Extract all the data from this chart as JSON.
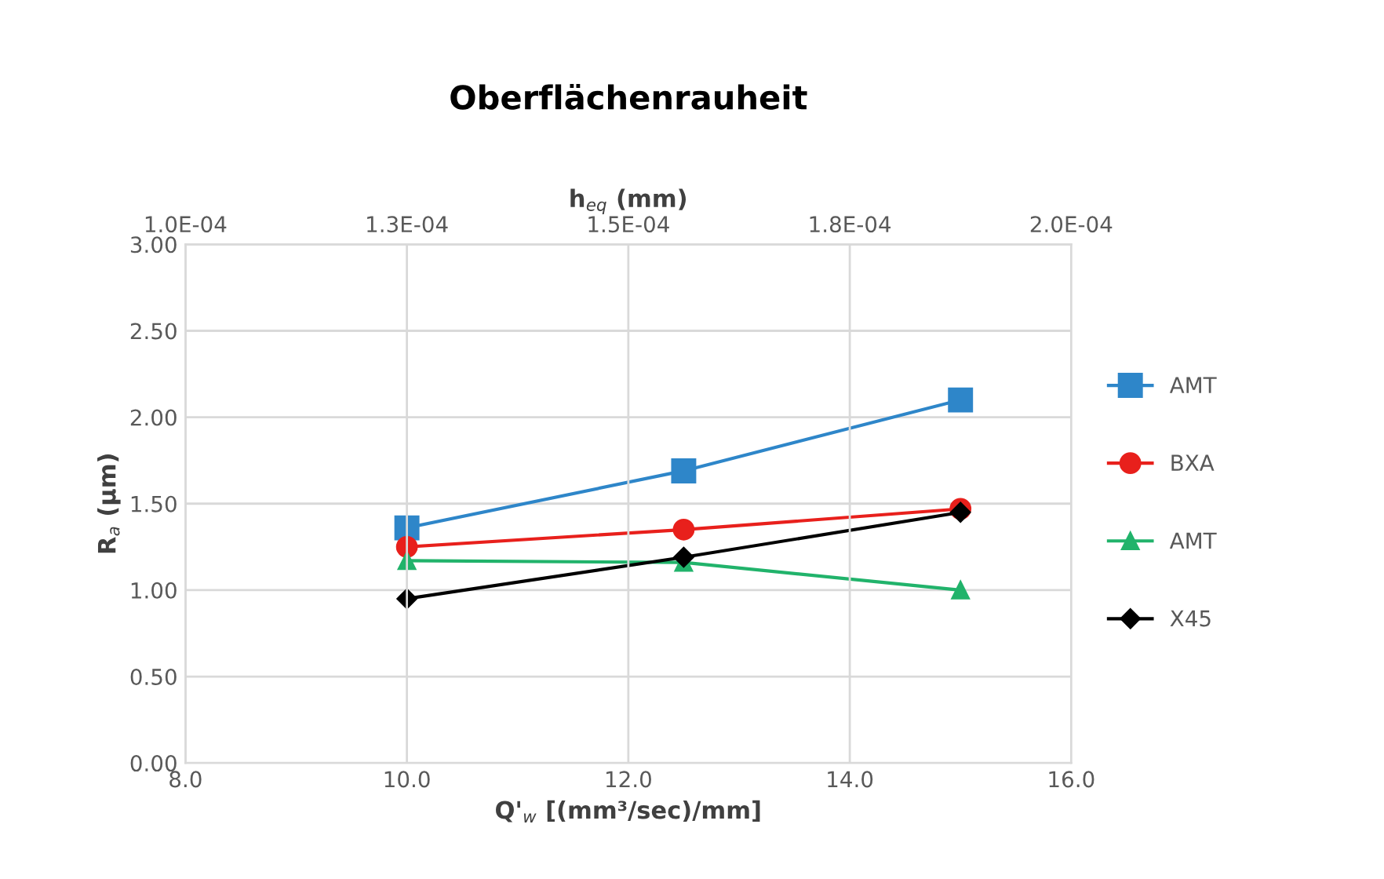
{
  "chart_data": {
    "type": "line",
    "title": "Oberflächenrauheit",
    "xlabel": "Q'$_{w}$ [(mm³/sec)/mm]",
    "ylabel": "R$_{a}$ (µm)",
    "x2label": "h$_{eq}$ (mm)",
    "x": [
      10.0,
      12.5,
      15.0
    ],
    "series": [
      {
        "name": "AMT",
        "color": "#2e86c9",
        "marker": "square",
        "values": [
          1.36,
          1.69,
          2.1
        ]
      },
      {
        "name": "BXA",
        "color": "#e8201c",
        "marker": "circle",
        "values": [
          1.25,
          1.35,
          1.47
        ]
      },
      {
        "name": "AMT",
        "color": "#21b36b",
        "marker": "triangle",
        "values": [
          1.17,
          1.16,
          1.0
        ]
      },
      {
        "name": "X45",
        "color": "#000000",
        "marker": "diamond",
        "values": [
          0.95,
          1.19,
          1.45
        ]
      }
    ],
    "xlim": [
      8.0,
      16.0
    ],
    "xticks": [
      {
        "value": 8,
        "label": "8.0"
      },
      {
        "value": 10,
        "label": "10.0"
      },
      {
        "value": 12,
        "label": "12.0"
      },
      {
        "value": 14,
        "label": "14.0"
      },
      {
        "value": 16,
        "label": "16.0"
      }
    ],
    "ylim": [
      0,
      3
    ],
    "yticks": [
      {
        "value": 0,
        "label": "0.00"
      },
      {
        "value": 0.5,
        "label": "0.50"
      },
      {
        "value": 1,
        "label": "1.00"
      },
      {
        "value": 1.5,
        "label": "1.50"
      },
      {
        "value": 2,
        "label": "2.00"
      },
      {
        "value": 2.5,
        "label": "2.50"
      },
      {
        "value": 3,
        "label": "3.00"
      }
    ],
    "x2lim": [
      0.0001,
      0.0002
    ],
    "x2ticks": [
      {
        "value": 0.0001,
        "label": "1.0E-04"
      },
      {
        "value": 0.000125,
        "label": "1.3E-04"
      },
      {
        "value": 0.00015,
        "label": "1.5E-04"
      },
      {
        "value": 0.000175,
        "label": "1.8E-04"
      },
      {
        "value": 0.0002,
        "label": "2.0E-04"
      }
    ],
    "grid": true,
    "legend": "right",
    "line_style": "solid"
  }
}
